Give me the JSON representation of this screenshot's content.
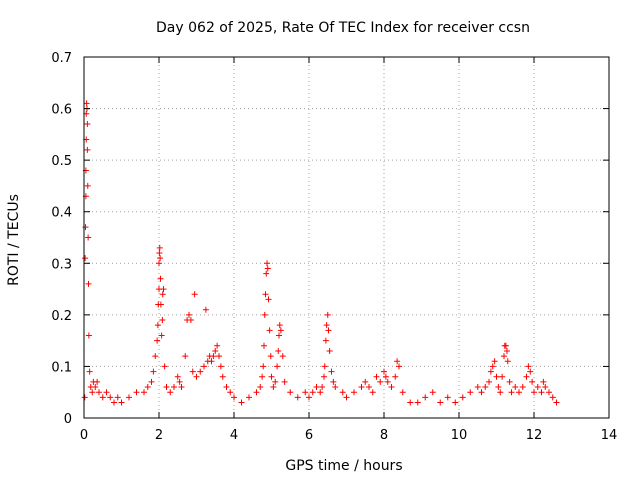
{
  "chart_data": {
    "type": "scatter",
    "title": "Day 062 of 2025, Rate Of TEC Index for receiver ccsn",
    "xlabel": "GPS time / hours",
    "ylabel": "ROTI / TECUs",
    "xlim": [
      0,
      14
    ],
    "ylim": [
      0,
      0.7
    ],
    "x_ticks": [
      0,
      2,
      4,
      6,
      8,
      10,
      12,
      14
    ],
    "x_tick_labels": [
      "0",
      "2",
      "4",
      "6",
      "8",
      "10",
      "12",
      "14"
    ],
    "y_ticks": [
      0,
      0.1,
      0.2,
      0.3,
      0.4,
      0.5,
      0.6,
      0.7
    ],
    "y_tick_labels": [
      "0",
      "0.1",
      "0.2",
      "0.3",
      "0.4",
      "0.5",
      "0.6",
      "0.7"
    ],
    "grid": true,
    "marker": "+",
    "marker_color": "#ff0000",
    "series": [
      {
        "name": "ROTI",
        "points": [
          [
            0.02,
            0.04
          ],
          [
            0.03,
            0.31
          ],
          [
            0.04,
            0.37
          ],
          [
            0.05,
            0.43
          ],
          [
            0.05,
            0.48
          ],
          [
            0.06,
            0.54
          ],
          [
            0.06,
            0.59
          ],
          [
            0.07,
            0.61
          ],
          [
            0.08,
            0.6
          ],
          [
            0.09,
            0.57
          ],
          [
            0.09,
            0.52
          ],
          [
            0.1,
            0.45
          ],
          [
            0.11,
            0.35
          ],
          [
            0.12,
            0.26
          ],
          [
            0.13,
            0.16
          ],
          [
            0.15,
            0.09
          ],
          [
            0.18,
            0.06
          ],
          [
            0.22,
            0.05
          ],
          [
            0.25,
            0.07
          ],
          [
            0.3,
            0.06
          ],
          [
            0.35,
            0.07
          ],
          [
            0.4,
            0.05
          ],
          [
            0.5,
            0.04
          ],
          [
            0.6,
            0.05
          ],
          [
            0.7,
            0.04
          ],
          [
            0.8,
            0.03
          ],
          [
            0.9,
            0.04
          ],
          [
            1.0,
            0.03
          ],
          [
            1.2,
            0.04
          ],
          [
            1.4,
            0.05
          ],
          [
            1.6,
            0.05
          ],
          [
            1.7,
            0.06
          ],
          [
            1.8,
            0.07
          ],
          [
            1.85,
            0.09
          ],
          [
            1.9,
            0.12
          ],
          [
            1.95,
            0.15
          ],
          [
            1.97,
            0.18
          ],
          [
            1.98,
            0.22
          ],
          [
            2.0,
            0.25
          ],
          [
            2.0,
            0.3
          ],
          [
            2.01,
            0.32
          ],
          [
            2.02,
            0.33
          ],
          [
            2.03,
            0.31
          ],
          [
            2.04,
            0.27
          ],
          [
            2.05,
            0.22
          ],
          [
            2.07,
            0.16
          ],
          [
            2.09,
            0.19
          ],
          [
            2.1,
            0.24
          ],
          [
            2.12,
            0.25
          ],
          [
            2.15,
            0.1
          ],
          [
            2.2,
            0.06
          ],
          [
            2.3,
            0.05
          ],
          [
            2.4,
            0.06
          ],
          [
            2.5,
            0.08
          ],
          [
            2.55,
            0.07
          ],
          [
            2.6,
            0.06
          ],
          [
            2.7,
            0.12
          ],
          [
            2.75,
            0.19
          ],
          [
            2.8,
            0.2
          ],
          [
            2.85,
            0.19
          ],
          [
            2.9,
            0.09
          ],
          [
            2.95,
            0.24
          ],
          [
            3.0,
            0.08
          ],
          [
            3.1,
            0.09
          ],
          [
            3.2,
            0.1
          ],
          [
            3.25,
            0.21
          ],
          [
            3.3,
            0.11
          ],
          [
            3.35,
            0.12
          ],
          [
            3.4,
            0.11
          ],
          [
            3.45,
            0.12
          ],
          [
            3.5,
            0.13
          ],
          [
            3.55,
            0.14
          ],
          [
            3.6,
            0.12
          ],
          [
            3.65,
            0.1
          ],
          [
            3.7,
            0.08
          ],
          [
            3.8,
            0.06
          ],
          [
            3.9,
            0.05
          ],
          [
            4.0,
            0.04
          ],
          [
            4.2,
            0.03
          ],
          [
            4.4,
            0.04
          ],
          [
            4.6,
            0.05
          ],
          [
            4.7,
            0.06
          ],
          [
            4.75,
            0.08
          ],
          [
            4.78,
            0.1
          ],
          [
            4.8,
            0.14
          ],
          [
            4.82,
            0.2
          ],
          [
            4.84,
            0.24
          ],
          [
            4.86,
            0.28
          ],
          [
            4.88,
            0.3
          ],
          [
            4.9,
            0.29
          ],
          [
            4.92,
            0.23
          ],
          [
            4.95,
            0.17
          ],
          [
            4.98,
            0.12
          ],
          [
            5.0,
            0.08
          ],
          [
            5.05,
            0.06
          ],
          [
            5.1,
            0.07
          ],
          [
            5.15,
            0.1
          ],
          [
            5.18,
            0.13
          ],
          [
            5.2,
            0.16
          ],
          [
            5.22,
            0.18
          ],
          [
            5.25,
            0.17
          ],
          [
            5.3,
            0.12
          ],
          [
            5.35,
            0.07
          ],
          [
            5.5,
            0.05
          ],
          [
            5.7,
            0.04
          ],
          [
            5.9,
            0.05
          ],
          [
            6.0,
            0.04
          ],
          [
            6.1,
            0.05
          ],
          [
            6.2,
            0.06
          ],
          [
            6.3,
            0.05
          ],
          [
            6.35,
            0.06
          ],
          [
            6.4,
            0.08
          ],
          [
            6.42,
            0.1
          ],
          [
            6.45,
            0.15
          ],
          [
            6.47,
            0.18
          ],
          [
            6.5,
            0.2
          ],
          [
            6.52,
            0.17
          ],
          [
            6.55,
            0.13
          ],
          [
            6.6,
            0.09
          ],
          [
            6.65,
            0.07
          ],
          [
            6.7,
            0.06
          ],
          [
            6.9,
            0.05
          ],
          [
            7.0,
            0.04
          ],
          [
            7.2,
            0.05
          ],
          [
            7.4,
            0.06
          ],
          [
            7.5,
            0.07
          ],
          [
            7.6,
            0.06
          ],
          [
            7.7,
            0.05
          ],
          [
            7.8,
            0.08
          ],
          [
            7.9,
            0.07
          ],
          [
            8.0,
            0.09
          ],
          [
            8.05,
            0.08
          ],
          [
            8.1,
            0.07
          ],
          [
            8.2,
            0.06
          ],
          [
            8.3,
            0.08
          ],
          [
            8.35,
            0.11
          ],
          [
            8.4,
            0.1
          ],
          [
            8.5,
            0.05
          ],
          [
            8.7,
            0.03
          ],
          [
            8.9,
            0.03
          ],
          [
            9.1,
            0.04
          ],
          [
            9.3,
            0.05
          ],
          [
            9.5,
            0.03
          ],
          [
            9.7,
            0.04
          ],
          [
            9.9,
            0.03
          ],
          [
            10.1,
            0.04
          ],
          [
            10.3,
            0.05
          ],
          [
            10.5,
            0.06
          ],
          [
            10.6,
            0.05
          ],
          [
            10.7,
            0.06
          ],
          [
            10.8,
            0.07
          ],
          [
            10.85,
            0.09
          ],
          [
            10.9,
            0.1
          ],
          [
            10.95,
            0.11
          ],
          [
            11.0,
            0.08
          ],
          [
            11.05,
            0.06
          ],
          [
            11.1,
            0.05
          ],
          [
            11.15,
            0.08
          ],
          [
            11.2,
            0.12
          ],
          [
            11.22,
            0.14
          ],
          [
            11.25,
            0.14
          ],
          [
            11.28,
            0.13
          ],
          [
            11.3,
            0.11
          ],
          [
            11.35,
            0.07
          ],
          [
            11.4,
            0.05
          ],
          [
            11.5,
            0.06
          ],
          [
            11.6,
            0.05
          ],
          [
            11.7,
            0.06
          ],
          [
            11.8,
            0.08
          ],
          [
            11.85,
            0.1
          ],
          [
            11.9,
            0.09
          ],
          [
            11.95,
            0.07
          ],
          [
            12.0,
            0.05
          ],
          [
            12.1,
            0.06
          ],
          [
            12.2,
            0.05
          ],
          [
            12.25,
            0.07
          ],
          [
            12.3,
            0.06
          ],
          [
            12.4,
            0.05
          ],
          [
            12.5,
            0.04
          ],
          [
            12.6,
            0.03
          ]
        ]
      }
    ]
  }
}
